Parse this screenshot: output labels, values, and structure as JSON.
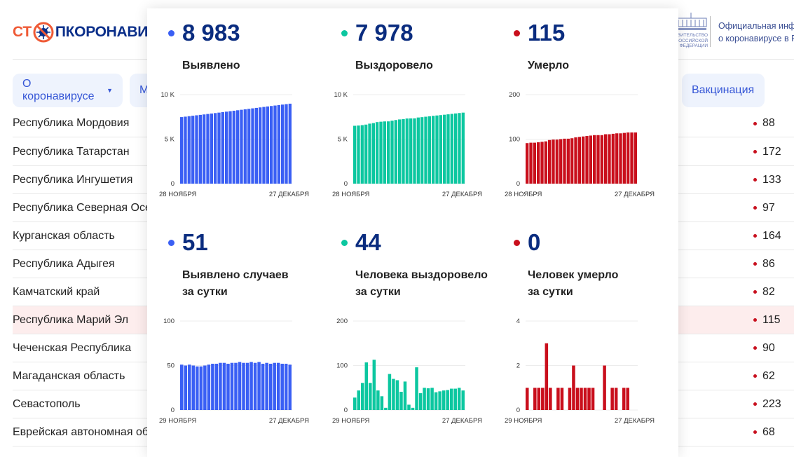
{
  "header": {
    "logo_text": "СТОПКОРОНАВИРУС",
    "logo_left": "СТ",
    "logo_right": "ПКОРОНАВИ",
    "gov_logo_text": "ПРАВИТЕЛЬСТВО РОССИЙСКОЙ ФЕДЕРАЦИИ",
    "official_line1": "Официальная инфо",
    "official_line2": "о коронавирусе в Р"
  },
  "nav": {
    "about_label": "О коронавирусе",
    "second_label": "М",
    "vaccination_label": "Вакцинация"
  },
  "table": {
    "rows": [
      {
        "name": "Республика Мордовия",
        "value": "88"
      },
      {
        "name": "Республика Татарстан",
        "value": "172"
      },
      {
        "name": "Республика Ингушетия",
        "value": "133"
      },
      {
        "name": "Республика Северная Осе",
        "value": "97"
      },
      {
        "name": "Курганская область",
        "value": "164"
      },
      {
        "name": "Республика Адыгея",
        "value": "86"
      },
      {
        "name": "Камчатский край",
        "value": "82"
      },
      {
        "name": "Республика Марий Эл",
        "value": "115",
        "highlighted": true
      },
      {
        "name": "Чеченская Республика",
        "value": "90"
      },
      {
        "name": "Магаданская область",
        "value": "62"
      },
      {
        "name": "Севастополь",
        "value": "223"
      },
      {
        "name": "Еврейская автономная об",
        "value": "68"
      }
    ]
  },
  "colors": {
    "cases": "#3a5ff4",
    "recovered": "#0cc7a0",
    "deaths": "#c90f1c",
    "number": "#0a2c7f"
  },
  "stats": [
    {
      "value": "8 983",
      "label_line1": "Выявлено",
      "label_line2": "",
      "color": "#3a5ff4"
    },
    {
      "value": "7 978",
      "label_line1": "Выздоровело",
      "label_line2": "",
      "color": "#0cc7a0"
    },
    {
      "value": "115",
      "label_line1": "Умерло",
      "label_line2": "",
      "color": "#c90f1c"
    },
    {
      "value": "51",
      "label_line1": "Выявлено случаев",
      "label_line2": "за сутки",
      "color": "#3a5ff4"
    },
    {
      "value": "44",
      "label_line1": "Человека выздоровело",
      "label_line2": "за сутки",
      "color": "#0cc7a0"
    },
    {
      "value": "0",
      "label_line1": "Человек умерло",
      "label_line2": "за сутки",
      "color": "#c90f1c"
    }
  ],
  "chart_data": [
    {
      "type": "bar",
      "color": "#3a5ff4",
      "ylim": [
        0,
        10000
      ],
      "yticks": [
        "0",
        "5 K",
        "10 K"
      ],
      "ytick_values": [
        0,
        5000,
        10000
      ],
      "x_start_label": "28 НОЯБРЯ",
      "x_end_label": "27 ДЕКАБРЯ",
      "grid": true,
      "values": [
        7475,
        7526,
        7576,
        7627,
        7677,
        7726,
        7775,
        7825,
        7876,
        7928,
        7980,
        8033,
        8086,
        8138,
        8191,
        8244,
        8298,
        8351,
        8404,
        8458,
        8511,
        8565,
        8617,
        8670,
        8722,
        8775,
        8828,
        8880,
        8932,
        8983
      ]
    },
    {
      "type": "bar",
      "color": "#0cc7a0",
      "ylim": [
        0,
        10000
      ],
      "yticks": [
        "0",
        "5 K",
        "10 K"
      ],
      "ytick_values": [
        0,
        5000,
        10000
      ],
      "x_start_label": "28 НОЯБРЯ",
      "x_end_label": "27 ДЕКАБРЯ",
      "grid": true,
      "values": [
        6500,
        6528,
        6572,
        6633,
        6740,
        6801,
        6914,
        6958,
        6989,
        6994,
        7075,
        7145,
        7212,
        7253,
        7317,
        7329,
        7334,
        7430,
        7468,
        7518,
        7567,
        7617,
        7657,
        7699,
        7743,
        7788,
        7836,
        7884,
        7934,
        7978
      ]
    },
    {
      "type": "bar",
      "color": "#c90f1c",
      "ylim": [
        0,
        200
      ],
      "yticks": [
        "0",
        "100",
        "200"
      ],
      "ytick_values": [
        0,
        100,
        200
      ],
      "x_start_label": "28 НОЯБРЯ",
      "x_end_label": "27 ДЕКАБРЯ",
      "grid": true,
      "values": [
        91,
        92,
        92,
        93,
        94,
        95,
        98,
        99,
        99,
        100,
        101,
        101,
        102,
        104,
        105,
        106,
        107,
        108,
        109,
        109,
        109,
        111,
        111,
        112,
        113,
        113,
        114,
        115,
        115,
        115
      ]
    },
    {
      "type": "bar",
      "color": "#3a5ff4",
      "ylim": [
        0,
        100
      ],
      "yticks": [
        "0",
        "50",
        "100"
      ],
      "ytick_values": [
        0,
        50,
        100
      ],
      "x_start_label": "29 НОЯБРЯ",
      "x_end_label": "27 ДЕКАБРЯ",
      "grid": true,
      "values": [
        51,
        50,
        51,
        50,
        49,
        49,
        50,
        51,
        52,
        52,
        53,
        53,
        52,
        53,
        53,
        54,
        53,
        53,
        54,
        53,
        54,
        52,
        53,
        52,
        53,
        53,
        52,
        52,
        51
      ]
    },
    {
      "type": "bar",
      "color": "#0cc7a0",
      "ylim": [
        0,
        200
      ],
      "yticks": [
        "0",
        "100",
        "200"
      ],
      "ytick_values": [
        0,
        100,
        200
      ],
      "x_start_label": "29 НОЯБРЯ",
      "x_end_label": "27 ДЕКАБРЯ",
      "grid": true,
      "values": [
        28,
        44,
        61,
        107,
        61,
        113,
        44,
        31,
        5,
        81,
        70,
        67,
        41,
        64,
        12,
        5,
        96,
        38,
        50,
        49,
        50,
        40,
        42,
        44,
        45,
        48,
        48,
        50,
        44
      ]
    },
    {
      "type": "bar",
      "color": "#c90f1c",
      "ylim": [
        0,
        4
      ],
      "yticks": [
        "0",
        "2",
        "4"
      ],
      "ytick_values": [
        0,
        2,
        4
      ],
      "x_start_label": "29 НОЯБРЯ",
      "x_end_label": "27 ДЕКАБРЯ",
      "grid": true,
      "values": [
        1,
        0,
        1,
        1,
        1,
        3,
        1,
        0,
        1,
        1,
        0,
        1,
        2,
        1,
        1,
        1,
        1,
        1,
        0,
        0,
        2,
        0,
        1,
        1,
        0,
        1,
        1,
        0,
        0
      ]
    }
  ]
}
